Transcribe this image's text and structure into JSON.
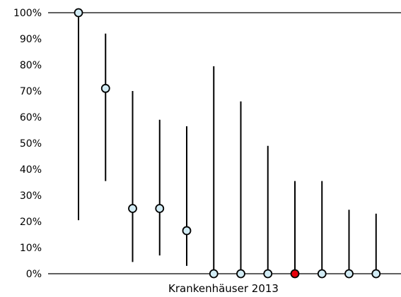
{
  "chart_data": {
    "type": "scatter",
    "xlabel": "Krankenhäuser 2013",
    "ylabel": "",
    "title": "",
    "ylim": [
      0,
      100
    ],
    "y_ticks": [
      0,
      10,
      20,
      30,
      40,
      50,
      60,
      70,
      80,
      90,
      100
    ],
    "y_tick_labels": [
      "0%",
      "10%",
      "20%",
      "30%",
      "40%",
      "50%",
      "60%",
      "70%",
      "80%",
      "90%",
      "100%"
    ],
    "grid": false,
    "legend": "none",
    "points": [
      {
        "value": 100,
        "lower": 20.5,
        "upper": 100,
        "highlight": false
      },
      {
        "value": 71,
        "lower": 35.5,
        "upper": 92,
        "highlight": false
      },
      {
        "value": 25,
        "lower": 4.5,
        "upper": 70,
        "highlight": false
      },
      {
        "value": 25,
        "lower": 7,
        "upper": 59,
        "highlight": false
      },
      {
        "value": 16.5,
        "lower": 3,
        "upper": 56.5,
        "highlight": false
      },
      {
        "value": 0,
        "lower": 0,
        "upper": 79.5,
        "highlight": false
      },
      {
        "value": 0,
        "lower": 0,
        "upper": 66,
        "highlight": false
      },
      {
        "value": 0,
        "lower": 0,
        "upper": 49,
        "highlight": false
      },
      {
        "value": 0,
        "lower": 0,
        "upper": 35.5,
        "highlight": true
      },
      {
        "value": 0,
        "lower": 0,
        "upper": 35.5,
        "highlight": false
      },
      {
        "value": 0,
        "lower": 0,
        "upper": 24.5,
        "highlight": false
      },
      {
        "value": 0,
        "lower": 0,
        "upper": 23,
        "highlight": false
      }
    ],
    "colors": {
      "point_fill": "#d2ecf5",
      "highlight_fill": "#e8000b",
      "stroke": "#000000"
    }
  }
}
